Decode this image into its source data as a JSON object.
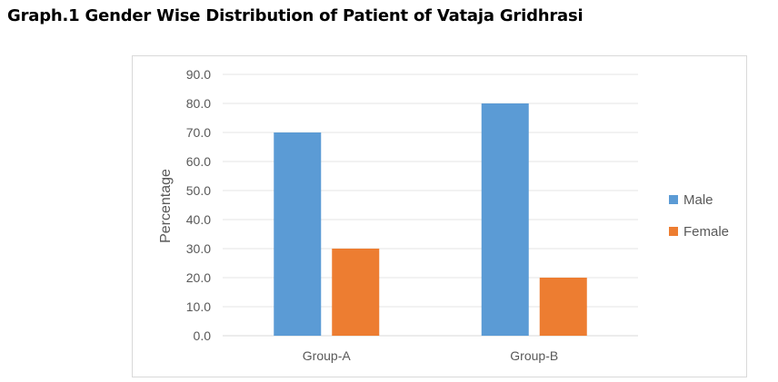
{
  "page": {
    "title": "Graph.1 Gender Wise Distribution of Patient of Vataja Gridhrasi"
  },
  "chart_data": {
    "type": "bar",
    "title": "Graph.1 Gender Wise Distribution of Patient of Vataja Gridhrasi",
    "xlabel": "",
    "ylabel": "Percentage",
    "categories": [
      "Group-A",
      "Group-B"
    ],
    "series": [
      {
        "name": "Male",
        "values": [
          70.0,
          80.0
        ],
        "color": "#5b9bd5"
      },
      {
        "name": "Female",
        "values": [
          30.0,
          20.0
        ],
        "color": "#ed7d31"
      }
    ],
    "ylim": [
      0,
      90
    ],
    "yticks": [
      "0.0",
      "10.0",
      "20.0",
      "30.0",
      "40.0",
      "50.0",
      "60.0",
      "70.0",
      "80.0",
      "90.0"
    ],
    "grid": true,
    "legend_position": "right"
  }
}
